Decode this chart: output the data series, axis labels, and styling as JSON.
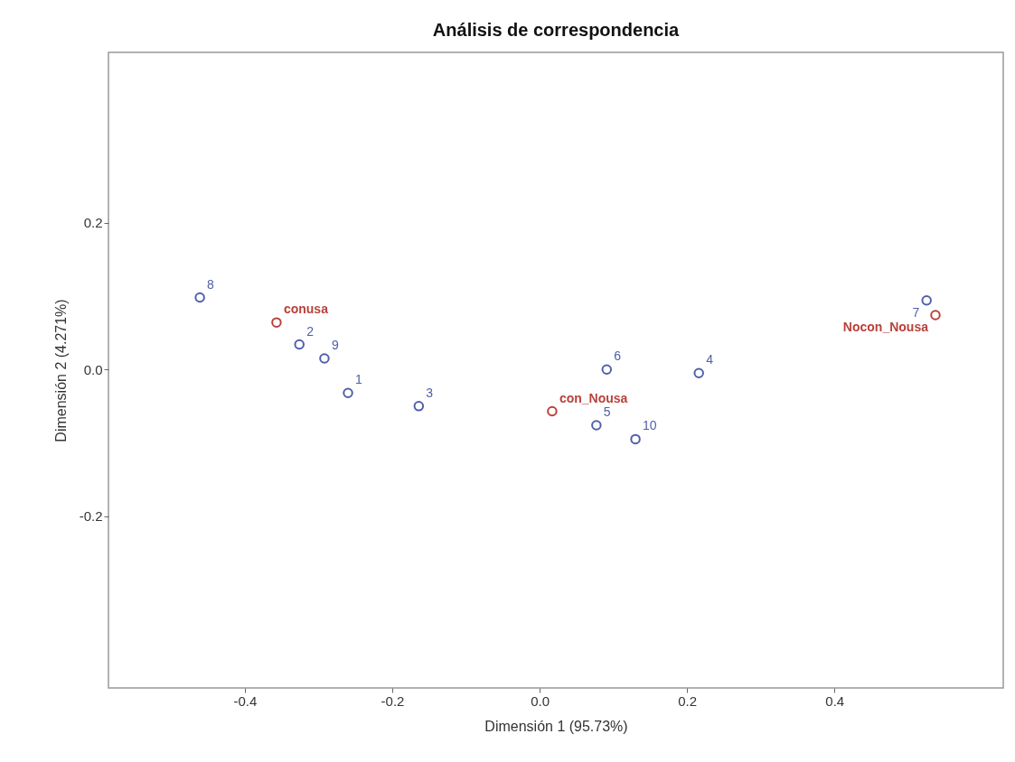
{
  "chart_data": {
    "type": "scatter",
    "title": "Análisis de correspondencia",
    "xlabel": "Dimensión 1 (95.73%)",
    "ylabel": "Dimensión 2 (4.271%)",
    "xlim": [
      -0.585,
      0.629
    ],
    "ylim": [
      -0.434,
      0.432
    ],
    "xticks": [
      -0.4,
      -0.2,
      {
        "value": 0,
        "label": "0.0"
      },
      0.2,
      0.4
    ],
    "yticks": [
      -0.2,
      {
        "value": 0,
        "label": "0.0"
      },
      0.2
    ],
    "grid": false,
    "marker": "circle",
    "series": [
      {
        "color": "#4f5fa8",
        "x": [
          -0.461,
          -0.326,
          -0.292,
          -0.26,
          -0.164,
          0.091,
          0.077,
          0.13,
          0.216,
          0.525
        ],
        "values": [
          0.098,
          0.034,
          0.015,
          -0.032,
          -0.05,
          0.0,
          -0.076,
          -0.095,
          -0.005,
          0.094
        ]
      },
      {
        "color": "#b8413a",
        "x": [
          -0.357,
          0.017,
          0.537
        ],
        "values": [
          0.064,
          -0.057,
          0.074
        ]
      }
    ],
    "annotations": [
      {
        "text": "8",
        "x": -0.461,
        "y": 0.098
      },
      {
        "text": "2",
        "x": -0.326,
        "y": 0.034
      },
      {
        "text": "9",
        "x": -0.292,
        "y": 0.015
      },
      {
        "text": "1",
        "x": -0.26,
        "y": -0.032
      },
      {
        "text": "3",
        "x": -0.164,
        "y": -0.05
      },
      {
        "text": "6",
        "x": 0.091,
        "y": 0.0
      },
      {
        "text": "5",
        "x": 0.077,
        "y": -0.076
      },
      {
        "text": "10",
        "x": 0.13,
        "y": -0.095
      },
      {
        "text": "4",
        "x": 0.216,
        "y": -0.005
      },
      {
        "text": "7",
        "x": 0.525,
        "y": 0.094
      },
      {
        "text": "conusa",
        "x": -0.357,
        "y": 0.064
      },
      {
        "text": "con_Nousa",
        "x": 0.017,
        "y": -0.057
      },
      {
        "text": "Nocon_Nousa",
        "x": 0.537,
        "y": 0.074
      }
    ]
  }
}
